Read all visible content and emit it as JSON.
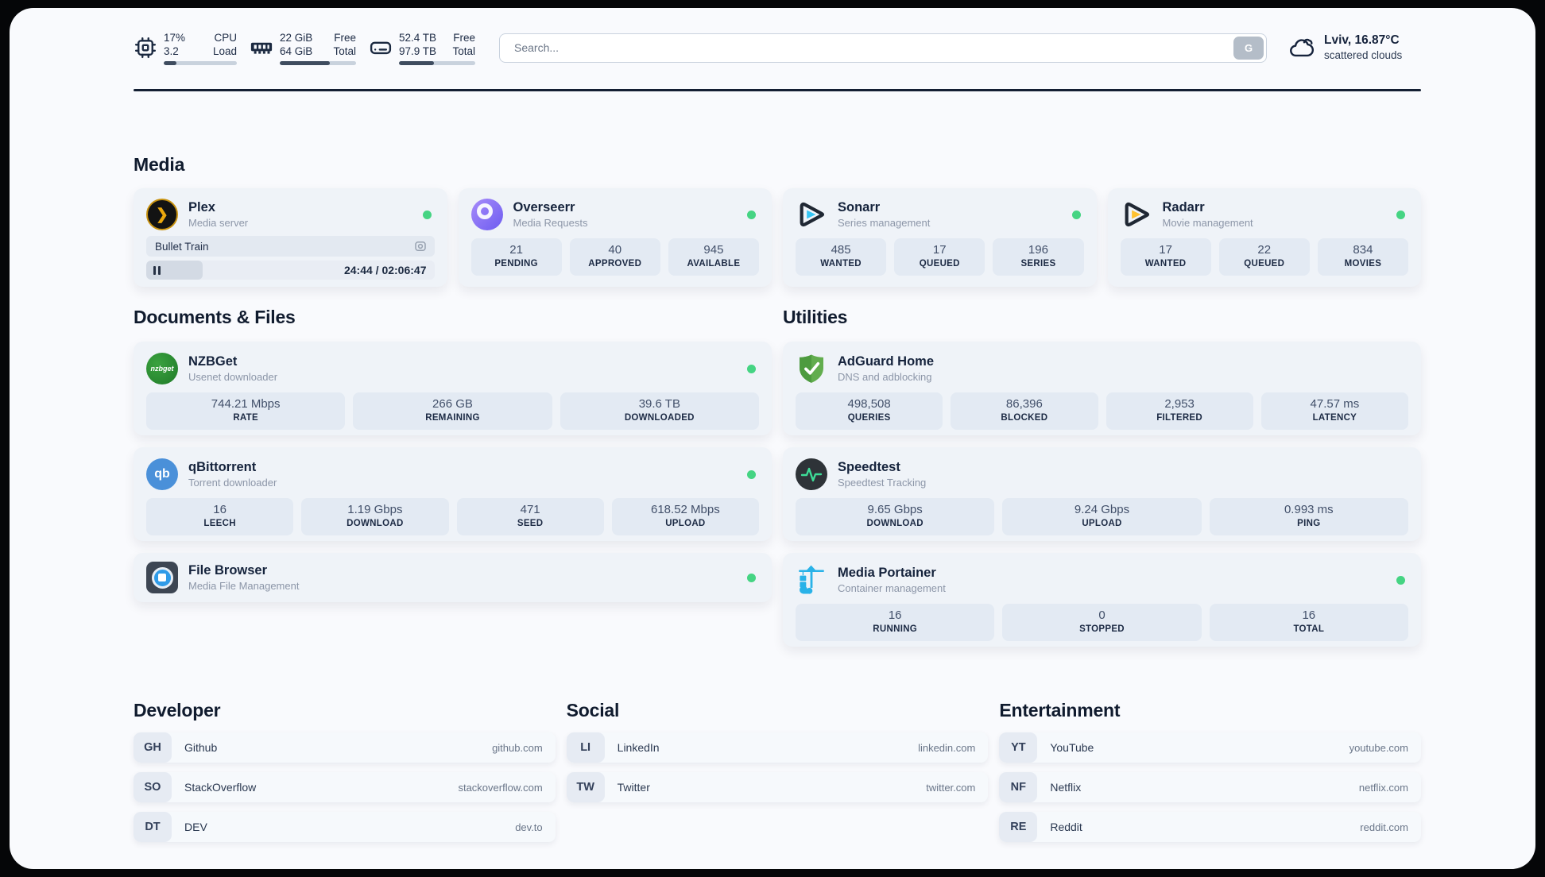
{
  "topbar": {
    "resources": [
      {
        "id": "cpu",
        "value1": "17%",
        "value2": "3.2",
        "label1": "CPU",
        "label2": "Load",
        "progress_pct": 17
      },
      {
        "id": "memory",
        "value1": "22 GiB",
        "value2": "64 GiB",
        "label1": "Free",
        "label2": "Total",
        "progress_pct": 66
      },
      {
        "id": "disk",
        "value1": "52.4 TB",
        "value2": "97.9 TB",
        "label1": "Free",
        "label2": "Total",
        "progress_pct": 46
      }
    ],
    "search": {
      "placeholder": "Search...",
      "engine_button": "G"
    },
    "weather": {
      "location": "Lviv, 16.87°C",
      "condition": "scattered clouds"
    }
  },
  "sections": {
    "media": "Media",
    "documents": "Documents & Files",
    "utilities": "Utilities",
    "developer": "Developer",
    "social": "Social",
    "entertainment": "Entertainment"
  },
  "media_cards": {
    "plex": {
      "title": "Plex",
      "subtitle": "Media server",
      "status": "online",
      "now_playing": "Bullet Train",
      "time": "24:44 / 02:06:47",
      "progress_pct": 19.5
    },
    "overseerr": {
      "title": "Overseerr",
      "subtitle": "Media Requests",
      "status": "online",
      "stats": [
        {
          "value": "21",
          "label": "PENDING"
        },
        {
          "value": "40",
          "label": "APPROVED"
        },
        {
          "value": "945",
          "label": "AVAILABLE"
        }
      ]
    },
    "sonarr": {
      "title": "Sonarr",
      "subtitle": "Series management",
      "status": "online",
      "stats": [
        {
          "value": "485",
          "label": "WANTED"
        },
        {
          "value": "17",
          "label": "QUEUED"
        },
        {
          "value": "196",
          "label": "SERIES"
        }
      ]
    },
    "radarr": {
      "title": "Radarr",
      "subtitle": "Movie management",
      "status": "online",
      "stats": [
        {
          "value": "17",
          "label": "WANTED"
        },
        {
          "value": "22",
          "label": "QUEUED"
        },
        {
          "value": "834",
          "label": "MOVIES"
        }
      ]
    }
  },
  "document_cards": {
    "nzbget": {
      "title": "NZBGet",
      "subtitle": "Usenet downloader",
      "status": "online",
      "logo_text": "nzbget",
      "stats": [
        {
          "value": "744.21 Mbps",
          "label": "RATE"
        },
        {
          "value": "266 GB",
          "label": "REMAINING"
        },
        {
          "value": "39.6 TB",
          "label": "DOWNLOADED"
        }
      ]
    },
    "qbittorrent": {
      "title": "qBittorrent",
      "subtitle": "Torrent downloader",
      "status": "online",
      "logo_text": "qb",
      "stats": [
        {
          "value": "16",
          "label": "LEECH"
        },
        {
          "value": "1.19 Gbps",
          "label": "DOWNLOAD"
        },
        {
          "value": "471",
          "label": "SEED"
        },
        {
          "value": "618.52 Mbps",
          "label": "UPLOAD"
        }
      ]
    },
    "filebrowser": {
      "title": "File Browser",
      "subtitle": "Media File Management",
      "status": "online"
    }
  },
  "utility_cards": {
    "adguard": {
      "title": "AdGuard Home",
      "subtitle": "DNS and adblocking",
      "stats": [
        {
          "value": "498,508",
          "label": "QUERIES"
        },
        {
          "value": "86,396",
          "label": "BLOCKED"
        },
        {
          "value": "2,953",
          "label": "FILTERED"
        },
        {
          "value": "47.57 ms",
          "label": "LATENCY"
        }
      ]
    },
    "speedtest": {
      "title": "Speedtest",
      "subtitle": "Speedtest Tracking",
      "stats": [
        {
          "value": "9.65 Gbps",
          "label": "DOWNLOAD"
        },
        {
          "value": "9.24 Gbps",
          "label": "UPLOAD"
        },
        {
          "value": "0.993 ms",
          "label": "PING"
        }
      ]
    },
    "portainer": {
      "title": "Media Portainer",
      "subtitle": "Container management",
      "status": "online",
      "stats": [
        {
          "value": "16",
          "label": "RUNNING"
        },
        {
          "value": "0",
          "label": "STOPPED"
        },
        {
          "value": "16",
          "label": "TOTAL"
        }
      ]
    }
  },
  "links": {
    "developer": [
      {
        "abbr": "GH",
        "name": "Github",
        "domain": "github.com"
      },
      {
        "abbr": "SO",
        "name": "StackOverflow",
        "domain": "stackoverflow.com"
      },
      {
        "abbr": "DT",
        "name": "DEV",
        "domain": "dev.to"
      }
    ],
    "social": [
      {
        "abbr": "LI",
        "name": "LinkedIn",
        "domain": "linkedin.com"
      },
      {
        "abbr": "TW",
        "name": "Twitter",
        "domain": "twitter.com"
      }
    ],
    "entertainment": [
      {
        "abbr": "YT",
        "name": "YouTube",
        "domain": "youtube.com"
      },
      {
        "abbr": "NF",
        "name": "Netflix",
        "domain": "netflix.com"
      },
      {
        "abbr": "RE",
        "name": "Reddit",
        "domain": "reddit.com"
      }
    ]
  },
  "colors": {
    "status_online": "#45d483",
    "accent_plex": "#eba80d",
    "accent_sonarr": "#35c5f4",
    "accent_radarr": "#ffc230",
    "accent_portainer": "#29b2e8"
  }
}
